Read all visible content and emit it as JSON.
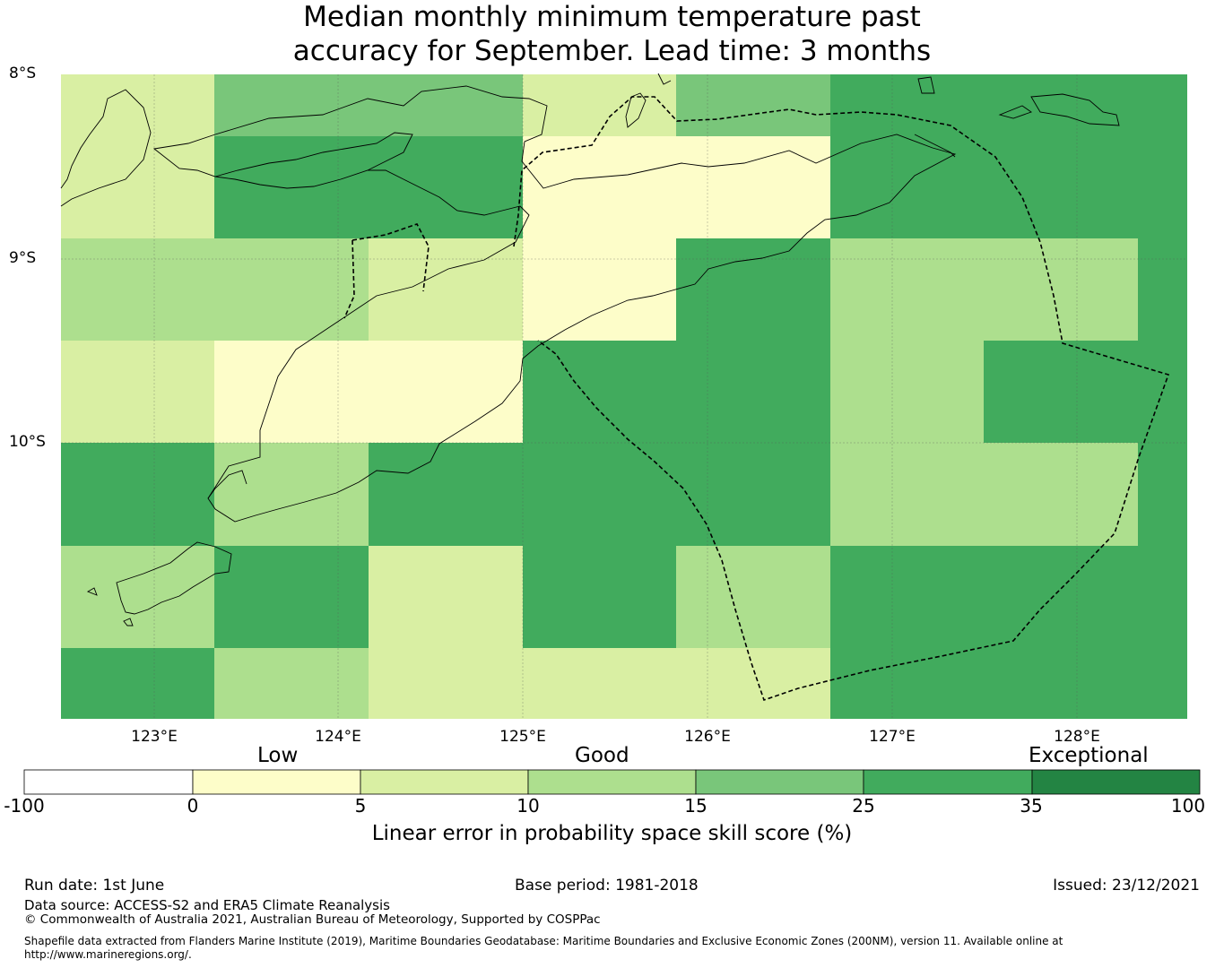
{
  "title": {
    "line1": "Median monthly minimum temperature past",
    "line2": "accuracy for September. Lead time: 3 months"
  },
  "map": {
    "lat_labels": [
      "8°S",
      "9°S",
      "10°S"
    ],
    "lon_labels": [
      "123°E",
      "124°E",
      "125°E",
      "126°E",
      "127°E",
      "128°E"
    ],
    "extent": {
      "lon_min": 122.5,
      "lon_max": 128.6,
      "lat_min": -11.5,
      "lat_max": -8.0
    },
    "grid_rows": [
      [
        5,
        15,
        15,
        5,
        15,
        25,
        25
      ],
      [
        5,
        25,
        25,
        0,
        0,
        25,
        25
      ],
      [
        10,
        10,
        5,
        0,
        25,
        10,
        10,
        25
      ],
      [
        5,
        0,
        0,
        25,
        25,
        10,
        25,
        25
      ],
      [
        25,
        10,
        25,
        25,
        25,
        10,
        10,
        25
      ],
      [
        10,
        25,
        5,
        25,
        10,
        25,
        25,
        25
      ],
      [
        25,
        10,
        5,
        5,
        5,
        25,
        25,
        25
      ]
    ],
    "colors": {
      "lt0": "#ffffff",
      "0-5": "#fdfdc9",
      "5-10": "#d9efa3",
      "10-15": "#addf8e",
      "15-25": "#79c67a",
      "25-35": "#41ab5d",
      "35-100": "#238443"
    }
  },
  "colorbar": {
    "category_labels": {
      "low": "Low",
      "good": "Good",
      "exceptional": "Exceptional"
    },
    "ticks": [
      "-100",
      "0",
      "5",
      "10",
      "15",
      "25",
      "35",
      "100"
    ],
    "colors": [
      "#ffffff",
      "#fdfdc9",
      "#d9efa3",
      "#addf8e",
      "#79c67a",
      "#41ab5d",
      "#238443"
    ],
    "caption": "Linear error in probability space skill score (%)"
  },
  "footer": {
    "run_date": "Run date: 1st June",
    "base_period": "Base period: 1981-2018",
    "issued": "Issued: 23/12/2021",
    "data_source": "Data source: ACCESS-S2 and ERA5 Climate Reanalysis",
    "copyright": "© Commonwealth of Australia 2021, Australian Bureau of Meteorology, Supported by COSPPac",
    "shapefile_line1": "Shapefile data extracted from Flanders Marine Institute (2019), Maritime Boundaries Geodatabase: Maritime Boundaries and Exclusive Economic Zones (200NM), version 11. Available online at",
    "shapefile_line2": "http://www.marineregions.org/."
  }
}
